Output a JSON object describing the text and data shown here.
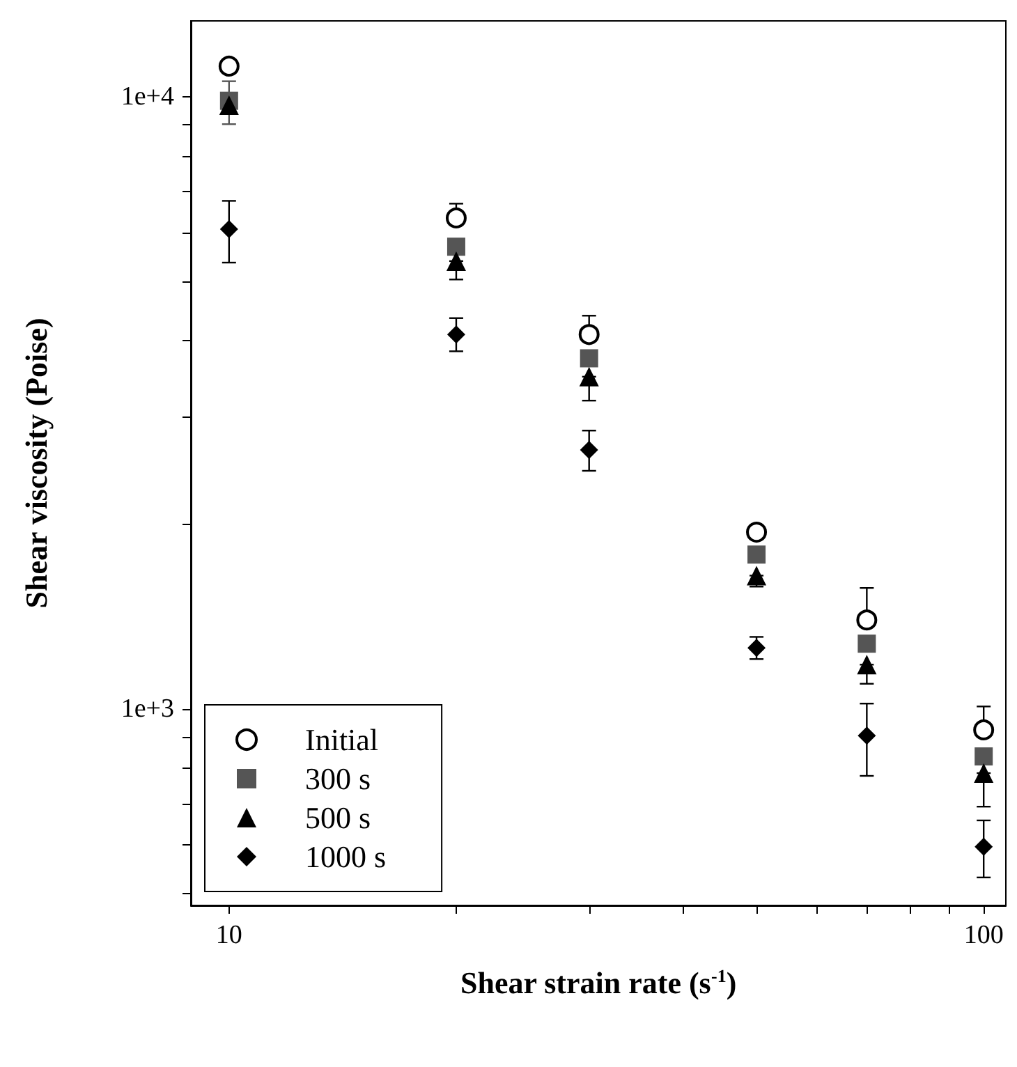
{
  "chart_data": {
    "type": "scatter",
    "xlabel": "Shear strain rate (s$^{-1}$)",
    "ylabel": "Shear viscosity (Poise)",
    "x": [
      10,
      20,
      30,
      50,
      70,
      100
    ],
    "series": [
      {
        "name": "Initial",
        "color": "#000000",
        "marker": "circle",
        "values": [
          11220,
          6340,
          4090,
          1945,
          1398,
          925
        ],
        "errors": [
          null,
          [
            6340,
            6690
          ],
          [
            4090,
            4390
          ],
          null,
          [
            1398,
            1577
          ],
          [
            925,
            1010
          ]
        ]
      },
      {
        "name": "300 s",
        "color": "#555555",
        "marker": "square",
        "values": [
          9850,
          5690,
          3740,
          1788,
          1279,
          837
        ],
        "errors": [
          [
            9020,
            10600
          ],
          null,
          null,
          null,
          null,
          null
        ]
      },
      {
        "name": "500 s",
        "color": "#000000",
        "marker": "triangle",
        "values": [
          9690,
          5390,
          3490,
          1652,
          1182,
          786
        ],
        "errors": [
          null,
          [
            5030,
            5390
          ],
          [
            3190,
            3490
          ],
          [
            1585,
            1652
          ],
          [
            1100,
            1182
          ],
          [
            693,
            786
          ]
        ]
      },
      {
        "name": "1000 s",
        "color": "#000000",
        "marker": "diamond",
        "values": [
          6080,
          4090,
          2650,
          1259,
          905,
          596
        ],
        "errors": [
          [
            5360,
            6760
          ],
          [
            3840,
            4350
          ],
          [
            2450,
            2850
          ],
          [
            1207,
            1312
          ],
          [
            778,
            1021
          ],
          [
            531,
            658
          ]
        ]
      }
    ],
    "log": "xy",
    "xlim": [
      8.9,
      107
    ],
    "ylim": [
      478,
      13300
    ],
    "xticks": [
      {
        "value": 10,
        "label": "10"
      },
      {
        "value": 20,
        "label": null
      },
      {
        "value": 30,
        "label": null
      },
      {
        "value": 40,
        "label": null
      },
      {
        "value": 50,
        "label": null
      },
      {
        "value": 60,
        "label": null
      },
      {
        "value": 70,
        "label": null
      },
      {
        "value": 80,
        "label": null
      },
      {
        "value": 90,
        "label": null
      },
      {
        "value": 100,
        "label": "100"
      }
    ],
    "yticks": [
      {
        "value": 500,
        "label": null
      },
      {
        "value": 600,
        "label": null
      },
      {
        "value": 700,
        "label": null
      },
      {
        "value": 800,
        "label": null
      },
      {
        "value": 900,
        "label": null
      },
      {
        "value": 1000,
        "label": "1e+3"
      },
      {
        "value": 2000,
        "label": null
      },
      {
        "value": 3000,
        "label": null
      },
      {
        "value": 4000,
        "label": null
      },
      {
        "value": 5000,
        "label": null
      },
      {
        "value": 6000,
        "label": null
      },
      {
        "value": 7000,
        "label": null
      },
      {
        "value": 8000,
        "label": null
      },
      {
        "value": 9000,
        "label": null
      },
      {
        "value": 10000,
        "label": "1e+4"
      }
    ],
    "grid": false,
    "legend": "bottom left"
  }
}
